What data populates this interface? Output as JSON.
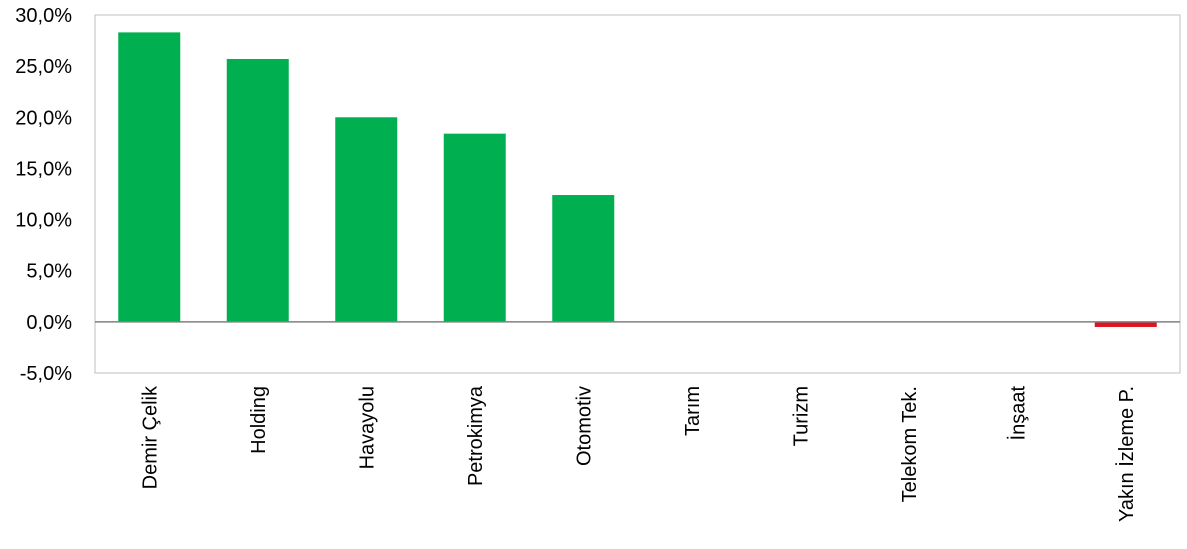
{
  "chart_data": {
    "type": "bar",
    "categories": [
      "Demir Çelik",
      "Holding",
      "Havayolu",
      "Petrokimya",
      "Otomotiv",
      "Tarım",
      "Turizm",
      "Telekom Tek.",
      "İnşaat",
      "Yakın İzleme P."
    ],
    "values": [
      28.3,
      25.7,
      20.0,
      18.4,
      12.4,
      0.0,
      0.0,
      0.0,
      0.0,
      -0.5
    ],
    "ylim": [
      -5,
      30
    ],
    "yticks": [
      30,
      25,
      20,
      15,
      10,
      5,
      0,
      -5
    ],
    "ytick_labels": [
      "30,0%",
      "25,0%",
      "20,0%",
      "15,0%",
      "10,0%",
      "5,0%",
      "0,0%",
      "-5,0%"
    ],
    "title": "",
    "xlabel": "",
    "ylabel": "",
    "grid": false,
    "legend": "none",
    "colors": {
      "positive": "#00b050",
      "negative": "#e0141e",
      "axis": "#808080",
      "border": "#bfbfbf"
    }
  }
}
